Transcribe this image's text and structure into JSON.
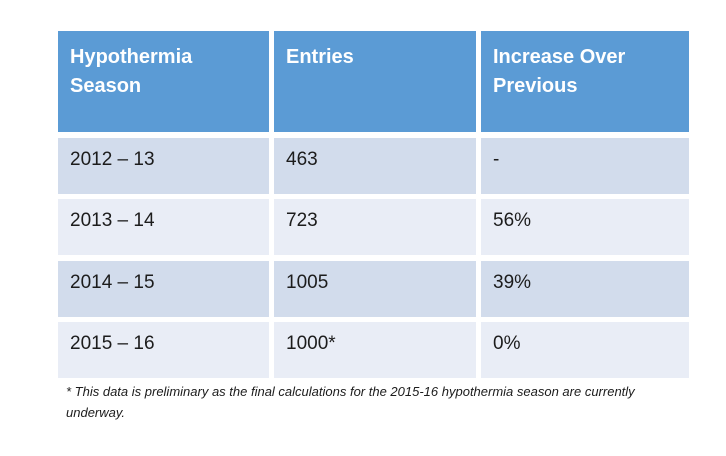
{
  "colors": {
    "header_bg": "#5B9BD5",
    "band_dark": "#D2DCEC",
    "band_light": "#E9EDF6",
    "header_text": "#FFFFFF",
    "body_text": "#1C1C1C",
    "page_bg": "#FFFFFF"
  },
  "table": {
    "columns": [
      {
        "label": "Hypothermia Season"
      },
      {
        "label": "Entries"
      },
      {
        "label": "Increase Over Previous"
      }
    ],
    "rows": [
      {
        "season": "2012 – 13",
        "entries": "463",
        "increase": "-"
      },
      {
        "season": "2013 – 14",
        "entries": "723",
        "increase": "56%"
      },
      {
        "season": "2014 – 15",
        "entries": "1005",
        "increase": "39%"
      },
      {
        "season": "2015 – 16",
        "entries": "1000*",
        "increase": "0%"
      }
    ]
  },
  "footnote": {
    "text": "* This data is preliminary as the final calculations for the 2015-16 hypothermia season are currently underway."
  },
  "chart_data": {
    "type": "table",
    "columns": [
      "Hypothermia Season",
      "Entries",
      "Increase Over Previous"
    ],
    "rows": [
      [
        "2012 – 13",
        "463",
        "-"
      ],
      [
        "2013 – 14",
        "723",
        "56%"
      ],
      [
        "2014 – 15",
        "1005",
        "39%"
      ],
      [
        "2015 – 16",
        "1000*",
        "0%"
      ]
    ]
  }
}
